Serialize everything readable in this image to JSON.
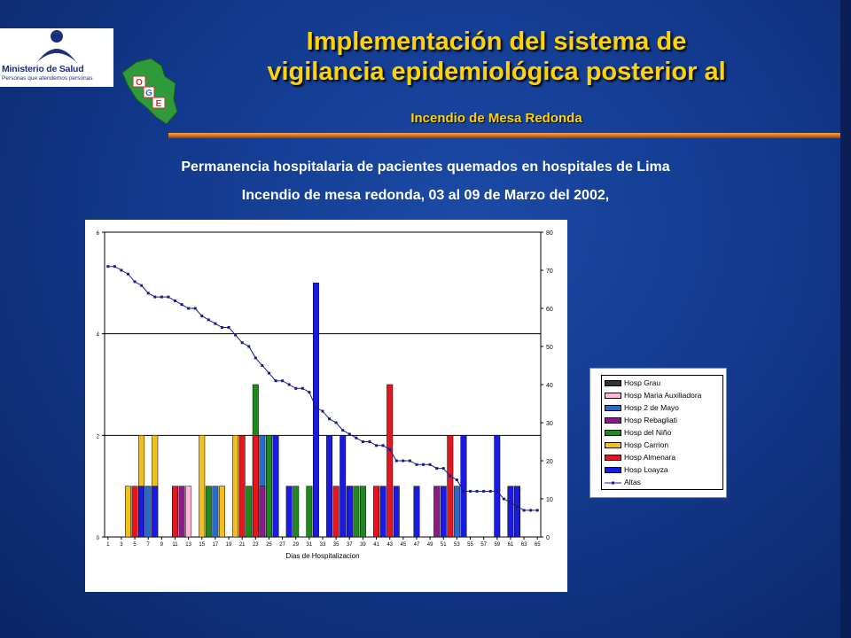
{
  "header": {
    "logo_name": "Ministerio de Salud",
    "logo_tagline": "Personas que atendemos personas",
    "emblem_letters": [
      "O",
      "G",
      "E"
    ],
    "title_line1": "Implementación del sistema de",
    "title_line2": "vigilancia epidemiológica posterior al",
    "subtitle": "Incendio de Mesa Redonda"
  },
  "caption": {
    "line1": "Permanencia hospitalaria de pacientes quemados en hospitales de Lima",
    "line2": "Incendio de mesa redonda, 03 al 09 de Marzo del 2002,"
  },
  "chart_data": {
    "type": "bar",
    "title": "",
    "xlabel": "Dias de Hospitalizacion",
    "ylabel": "",
    "x_ticks": [
      1,
      3,
      5,
      7,
      9,
      11,
      13,
      15,
      17,
      19,
      21,
      23,
      25,
      27,
      29,
      31,
      33,
      35,
      37,
      39,
      41,
      43,
      45,
      47,
      49,
      51,
      53,
      55,
      57,
      59,
      61,
      63,
      65
    ],
    "xlim": [
      1,
      65
    ],
    "ylim_left": [
      0,
      6
    ],
    "yticks_left": [
      0,
      2,
      4,
      6
    ],
    "ylim_right": [
      0,
      80
    ],
    "yticks_right": [
      0,
      10,
      20,
      30,
      40,
      50,
      60,
      70,
      80
    ],
    "grid": "horizontal at left-axis ticks",
    "legend_position": "right",
    "series": [
      {
        "name": "Hosp Grau",
        "color": "#333333",
        "bars": []
      },
      {
        "name": "Hosp Maria Auxiliadora",
        "color": "#ffb6d9",
        "bars": [
          {
            "day": 13,
            "value": 1
          }
        ]
      },
      {
        "name": "Hosp 2 de Mayo",
        "color": "#2a6bc9",
        "bars": [
          {
            "day": 7,
            "value": 1
          },
          {
            "day": 17,
            "value": 1
          },
          {
            "day": 24,
            "value": 2
          },
          {
            "day": 53,
            "value": 1
          }
        ]
      },
      {
        "name": "Hosp Rebagliati",
        "color": "#8b1a8b",
        "bars": [
          {
            "day": 12,
            "value": 1
          },
          {
            "day": 24,
            "value": 1
          },
          {
            "day": 50,
            "value": 1
          }
        ]
      },
      {
        "name": "Hosp del Niño",
        "color": "#1e8a1e",
        "bars": [
          {
            "day": 16,
            "value": 1
          },
          {
            "day": 22,
            "value": 1
          },
          {
            "day": 23,
            "value": 3
          },
          {
            "day": 25,
            "value": 2
          },
          {
            "day": 29,
            "value": 1
          },
          {
            "day": 31,
            "value": 1
          },
          {
            "day": 38,
            "value": 1
          },
          {
            "day": 39,
            "value": 1
          }
        ]
      },
      {
        "name": "Hosp Carrion",
        "color": "#f2c01e",
        "bars": [
          {
            "day": 4,
            "value": 1
          },
          {
            "day": 6,
            "value": 2
          },
          {
            "day": 8,
            "value": 2
          },
          {
            "day": 15,
            "value": 2
          },
          {
            "day": 18,
            "value": 1
          },
          {
            "day": 20,
            "value": 2
          },
          {
            "day": 37,
            "value": 1
          }
        ]
      },
      {
        "name": "Hosp Almenara",
        "color": "#e8141e",
        "bars": [
          {
            "day": 5,
            "value": 1
          },
          {
            "day": 11,
            "value": 1
          },
          {
            "day": 21,
            "value": 2
          },
          {
            "day": 23,
            "value": 2
          },
          {
            "day": 35,
            "value": 1
          },
          {
            "day": 41,
            "value": 1
          },
          {
            "day": 43,
            "value": 3
          },
          {
            "day": 52,
            "value": 2
          }
        ]
      },
      {
        "name": "Hosp Loayza",
        "color": "#1a1ae6",
        "bars": [
          {
            "day": 6,
            "value": 1
          },
          {
            "day": 8,
            "value": 1
          },
          {
            "day": 26,
            "value": 2
          },
          {
            "day": 28,
            "value": 1
          },
          {
            "day": 32,
            "value": 5
          },
          {
            "day": 34,
            "value": 2
          },
          {
            "day": 36,
            "value": 2
          },
          {
            "day": 37,
            "value": 1
          },
          {
            "day": 42,
            "value": 1
          },
          {
            "day": 44,
            "value": 1
          },
          {
            "day": 47,
            "value": 1
          },
          {
            "day": 51,
            "value": 1
          },
          {
            "day": 54,
            "value": 2
          },
          {
            "day": 59,
            "value": 2
          },
          {
            "day": 61,
            "value": 1
          },
          {
            "day": 62,
            "value": 1
          }
        ]
      },
      {
        "name": "Altas",
        "type": "line",
        "axis": "right",
        "color": "#1a1a8c",
        "x": [
          1,
          2,
          3,
          4,
          5,
          6,
          7,
          8,
          9,
          10,
          11,
          12,
          13,
          14,
          15,
          16,
          17,
          18,
          19,
          20,
          21,
          22,
          23,
          24,
          25,
          26,
          27,
          28,
          29,
          30,
          31,
          32,
          33,
          34,
          35,
          36,
          37,
          38,
          39,
          40,
          41,
          42,
          43,
          44,
          45,
          46,
          47,
          48,
          49,
          50,
          51,
          52,
          53,
          54,
          55,
          56,
          57,
          58,
          59,
          60,
          61,
          62,
          63,
          64,
          65
        ],
        "values": [
          71,
          71,
          70,
          69,
          67,
          66,
          64,
          63,
          63,
          63,
          62,
          61,
          60,
          60,
          58,
          57,
          56,
          55,
          55,
          53,
          51,
          50,
          47,
          45,
          43,
          41,
          41,
          40,
          39,
          39,
          38,
          34,
          33,
          31,
          30,
          28,
          27,
          26,
          25,
          25,
          24,
          24,
          23,
          20,
          20,
          20,
          19,
          19,
          19,
          18,
          18,
          16,
          15,
          12,
          12,
          12,
          12,
          12,
          12,
          10,
          9,
          8,
          7,
          7,
          7
        ]
      }
    ]
  }
}
